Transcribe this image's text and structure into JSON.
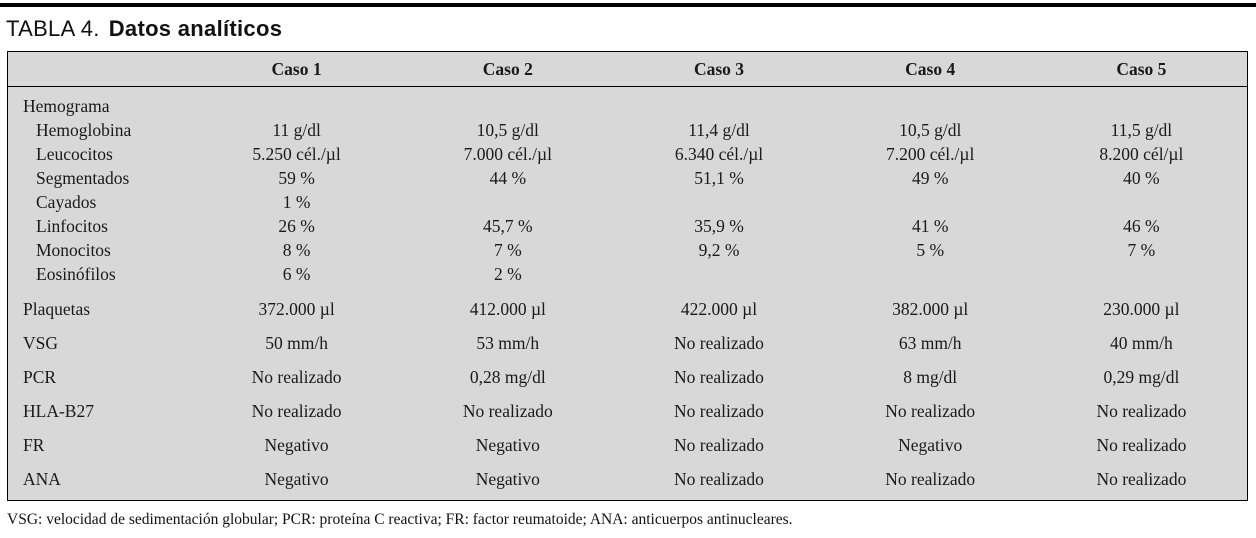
{
  "title": {
    "prefix": "TABLA 4.",
    "name": "Datos analíticos"
  },
  "table": {
    "columns": [
      "Caso 1",
      "Caso 2",
      "Caso 3",
      "Caso 4",
      "Caso 5"
    ],
    "rows": [
      {
        "label": "Hemograma",
        "indent": false,
        "spacing": "tight",
        "values": [
          "",
          "",
          "",
          "",
          ""
        ]
      },
      {
        "label": "Hemoglobina",
        "indent": true,
        "spacing": "tight",
        "values": [
          "11 g/dl",
          "10,5 g/dl",
          "11,4 g/dl",
          "10,5 g/dl",
          "11,5 g/dl"
        ]
      },
      {
        "label": "Leucocitos",
        "indent": true,
        "spacing": "tight",
        "values": [
          "5.250 cél./µl",
          "7.000 cél./µl",
          "6.340 cél./µl",
          "7.200 cél./µl",
          "8.200 cél/µl"
        ]
      },
      {
        "label": "Segmentados",
        "indent": true,
        "spacing": "tight",
        "values": [
          "59 %",
          "44 %",
          "51,1 %",
          "49 %",
          "40 %"
        ]
      },
      {
        "label": "Cayados",
        "indent": true,
        "spacing": "tight",
        "values": [
          "1 %",
          "",
          "",
          "",
          ""
        ]
      },
      {
        "label": "Linfocitos",
        "indent": true,
        "spacing": "tight",
        "values": [
          "26 %",
          "45,7 %",
          "35,9 %",
          "41 %",
          "46 %"
        ]
      },
      {
        "label": "Monocitos",
        "indent": true,
        "spacing": "tight",
        "values": [
          "8 %",
          "7 %",
          "9,2 %",
          "5 %",
          "7 %"
        ]
      },
      {
        "label": "Eosinófilos",
        "indent": true,
        "spacing": "tight",
        "values": [
          "6 %",
          "2 %",
          "",
          "",
          ""
        ]
      },
      {
        "label": "Plaquetas",
        "indent": false,
        "spacing": "loose",
        "gapAbove": true,
        "values": [
          "372.000 µl",
          "412.000 µl",
          "422.000 µl",
          "382.000 µl",
          "230.000 µl"
        ]
      },
      {
        "label": "VSG",
        "indent": false,
        "spacing": "loose",
        "values": [
          "50 mm/h",
          "53 mm/h",
          "No realizado",
          "63 mm/h",
          "40 mm/h"
        ]
      },
      {
        "label": "PCR",
        "indent": false,
        "spacing": "loose",
        "values": [
          "No realizado",
          "0,28 mg/dl",
          "No realizado",
          "8 mg/dl",
          "0,29 mg/dl"
        ]
      },
      {
        "label": "HLA-B27",
        "indent": false,
        "spacing": "loose",
        "values": [
          "No realizado",
          "No realizado",
          "No realizado",
          "No realizado",
          "No realizado"
        ]
      },
      {
        "label": "FR",
        "indent": false,
        "spacing": "loose",
        "values": [
          "Negativo",
          "Negativo",
          "No realizado",
          "Negativo",
          "No realizado"
        ]
      },
      {
        "label": "ANA",
        "indent": false,
        "spacing": "loose",
        "values": [
          "Negativo",
          "Negativo",
          "No realizado",
          "No realizado",
          "No realizado"
        ]
      }
    ]
  },
  "footnote": "VSG: velocidad de sedimentación globular; PCR: proteína C reactiva; FR: factor reumatoide; ANA: anticuerpos antinucleares.",
  "colors": {
    "table_bg": "#d8d8d8",
    "border": "#000000",
    "rule": "#000000"
  }
}
